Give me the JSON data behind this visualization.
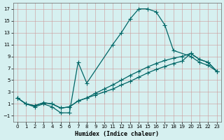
{
  "xlabel": "Humidex (Indice chaleur)",
  "bg_color": "#d6f0f0",
  "grid_color": "#cc9999",
  "line_color": "#006666",
  "xlim": [
    -0.5,
    23.5
  ],
  "ylim": [
    -2,
    18
  ],
  "xticks": [
    0,
    1,
    2,
    3,
    4,
    5,
    6,
    7,
    8,
    9,
    10,
    11,
    12,
    13,
    14,
    15,
    16,
    17,
    18,
    19,
    20,
    21,
    22,
    23
  ],
  "yticks": [
    -1,
    1,
    3,
    5,
    7,
    9,
    11,
    13,
    15,
    17
  ],
  "curve1_x": [
    0,
    1,
    2,
    3,
    4,
    5,
    6,
    7,
    8,
    11,
    12,
    13,
    14,
    15,
    16,
    17,
    18,
    20,
    21,
    22,
    23
  ],
  "curve1_y": [
    2,
    1,
    0.5,
    1,
    0.5,
    -0.5,
    -0.5,
    8,
    4.5,
    11,
    13,
    15.3,
    17,
    17,
    16.5,
    14.3,
    10,
    9,
    8,
    7.5,
    6.5
  ],
  "curve2_x": [
    0,
    1,
    2,
    3,
    4,
    5,
    6,
    7,
    8,
    9,
    10,
    11,
    12,
    13,
    14,
    15,
    16,
    17,
    18,
    19,
    20,
    21,
    22,
    23
  ],
  "curve2_y": [
    2,
    1,
    0.7,
    1.2,
    1.0,
    0.3,
    0.5,
    1.5,
    2.0,
    2.5,
    3.0,
    3.5,
    4.2,
    4.8,
    5.5,
    6.2,
    6.8,
    7.3,
    7.8,
    8.2,
    9.5,
    8.5,
    8.0,
    6.5
  ],
  "curve3_x": [
    0,
    1,
    2,
    3,
    4,
    5,
    6,
    7,
    8,
    9,
    10,
    11,
    12,
    13,
    14,
    15,
    16,
    17,
    18,
    19,
    20,
    21,
    22,
    23
  ],
  "curve3_y": [
    2,
    1,
    0.7,
    1.2,
    1.0,
    0.3,
    0.5,
    1.5,
    2.0,
    2.8,
    3.5,
    4.2,
    5.0,
    5.8,
    6.5,
    7.2,
    7.8,
    8.3,
    8.7,
    9.0,
    9.5,
    8.5,
    8.0,
    6.5
  ]
}
